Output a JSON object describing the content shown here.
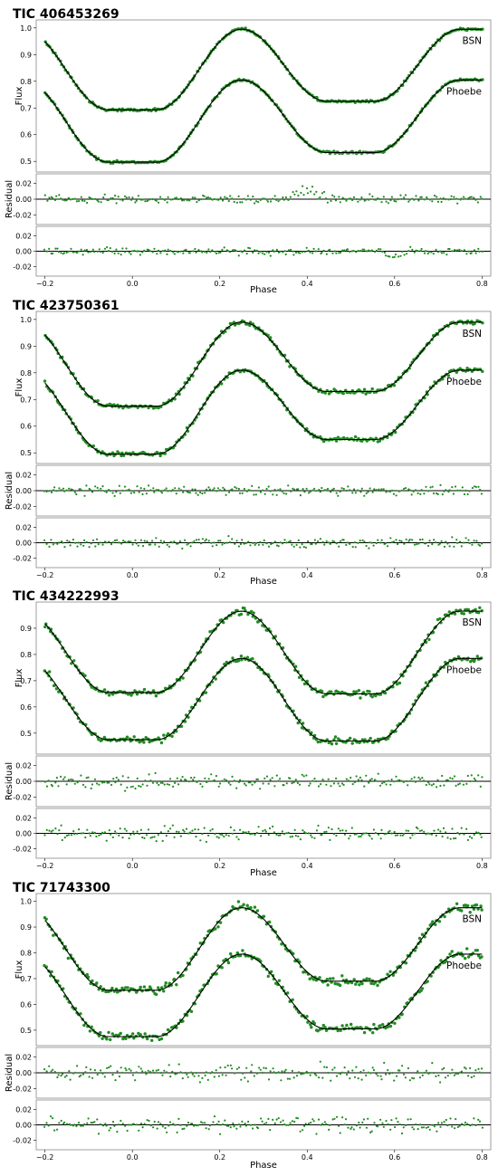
{
  "colors": {
    "points": "#228B22",
    "model": "#000000",
    "frame": "#888888",
    "zero_line": "#000000"
  },
  "chart_data": [
    {
      "type": "scatter",
      "title": "TIC 406453269",
      "xlabel": "Phase",
      "ylabel": "Flux",
      "residual_ylabel": "Residual",
      "xlim": [
        -0.22,
        0.82
      ],
      "ylim": [
        0.46,
        1.03
      ],
      "residual_ylim": [
        -0.032,
        0.032
      ],
      "xticks": [
        "-0.2",
        "0.0",
        "0.2",
        "0.4",
        "0.6",
        "0.8"
      ],
      "yticks": [
        "0.5",
        "0.6",
        "0.7",
        "0.8",
        "0.9",
        "1.0"
      ],
      "residual_yticks": [
        "0.02",
        "0.00",
        "-0.02"
      ],
      "series": [
        {
          "name": "BSN",
          "max": 0.995,
          "primary_min": 0.693,
          "secondary_min": 0.725,
          "scatter": 0.003,
          "residual_scatter": 0.006
        },
        {
          "name": "Phoebe",
          "max": 0.805,
          "primary_min": 0.497,
          "secondary_min": 0.533,
          "scatter": 0.003,
          "residual_scatter": 0.005
        }
      ],
      "eclipse_half_width": 0.055,
      "bump": {
        "center": 0.4,
        "height": 0.012
      }
    },
    {
      "type": "scatter",
      "title": "TIC 423750361",
      "xlabel": "Phase",
      "ylabel": "Flux",
      "residual_ylabel": "Residual",
      "xlim": [
        -0.22,
        0.82
      ],
      "ylim": [
        0.46,
        1.03
      ],
      "residual_ylim": [
        -0.032,
        0.032
      ],
      "xticks": [
        "-0.2",
        "0.0",
        "0.2",
        "0.4",
        "0.6",
        "0.8"
      ],
      "yticks": [
        "0.5",
        "0.6",
        "0.7",
        "0.8",
        "0.9",
        "1.0"
      ],
      "residual_yticks": [
        "0.02",
        "0.00",
        "-0.02"
      ],
      "series": [
        {
          "name": "BSN",
          "max": 0.99,
          "primary_min": 0.675,
          "secondary_min": 0.73,
          "scatter": 0.006,
          "residual_scatter": 0.007
        },
        {
          "name": "Phoebe",
          "max": 0.81,
          "primary_min": 0.495,
          "secondary_min": 0.55,
          "scatter": 0.006,
          "residual_scatter": 0.007
        }
      ],
      "eclipse_half_width": 0.055
    },
    {
      "type": "scatter",
      "title": "TIC 434222993",
      "xlabel": "Phase",
      "ylabel": "Flux",
      "residual_ylabel": "Residual",
      "xlim": [
        -0.22,
        0.82
      ],
      "ylim": [
        0.42,
        1.0
      ],
      "residual_ylim": [
        -0.032,
        0.032
      ],
      "xticks": [
        "-0.2",
        "0.0",
        "0.2",
        "0.4",
        "0.6",
        "0.8"
      ],
      "yticks": [
        "0.5",
        "0.6",
        "0.7",
        "0.8",
        "0.9"
      ],
      "residual_yticks": [
        "0.02",
        "0.00",
        "-0.02"
      ],
      "series": [
        {
          "name": "BSN",
          "max": 0.965,
          "primary_min": 0.655,
          "secondary_min": 0.65,
          "scatter": 0.009,
          "residual_scatter": 0.01
        },
        {
          "name": "Phoebe",
          "max": 0.785,
          "primary_min": 0.475,
          "secondary_min": 0.47,
          "scatter": 0.009,
          "residual_scatter": 0.01
        }
      ],
      "eclipse_half_width": 0.055
    },
    {
      "type": "scatter",
      "title": "TIC 71743300",
      "xlabel": "Phase",
      "ylabel": "Flux",
      "residual_ylabel": "Residual",
      "xlim": [
        -0.22,
        0.82
      ],
      "ylim": [
        0.44,
        1.03
      ],
      "residual_ylim": [
        -0.032,
        0.032
      ],
      "xticks": [
        "-0.2",
        "0.0",
        "0.2",
        "0.4",
        "0.6",
        "0.8"
      ],
      "yticks": [
        "0.5",
        "0.6",
        "0.7",
        "0.8",
        "0.9",
        "1.0"
      ],
      "residual_yticks": [
        "0.02",
        "0.00",
        "-0.02"
      ],
      "series": [
        {
          "name": "BSN",
          "max": 0.975,
          "primary_min": 0.655,
          "secondary_min": 0.69,
          "scatter": 0.011,
          "residual_scatter": 0.012
        },
        {
          "name": "Phoebe",
          "max": 0.795,
          "primary_min": 0.475,
          "secondary_min": 0.505,
          "scatter": 0.011,
          "residual_scatter": 0.012
        }
      ],
      "eclipse_half_width": 0.055
    }
  ]
}
